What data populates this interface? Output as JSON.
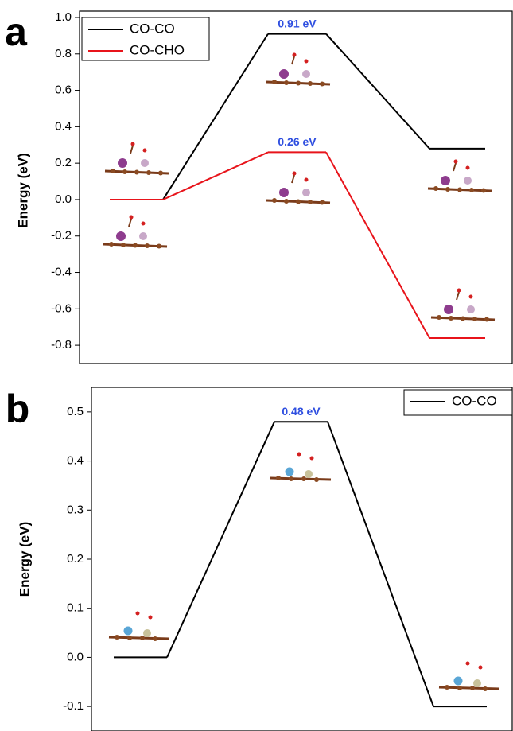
{
  "chart_data": [
    {
      "type": "line",
      "panel_label": "a",
      "y_label": "Energy (eV)",
      "categories": [
        null,
        null,
        null
      ],
      "series": [
        {
          "name": "CO-CO",
          "color": "#000000",
          "values": [
            0,
            0.91,
            0.28
          ],
          "value_labels": [
            null,
            "0.91 eV",
            null
          ]
        },
        {
          "name": "CO-CHO",
          "color": "#e8141b",
          "values": [
            0,
            0.26,
            -0.76
          ],
          "value_labels": [
            null,
            "0.26 eV",
            null
          ]
        }
      ],
      "ylim": [
        -0.9,
        1.0
      ],
      "yticks": [
        -0.8,
        -0.6,
        -0.4,
        -0.2,
        {
          "value": 0,
          "label": "0.0"
        },
        0.2,
        0.4,
        0.6,
        0.8,
        {
          "value": 1,
          "label": "1.0"
        }
      ],
      "legend": "top-left",
      "value_label_color": "#2f4fe0"
    },
    {
      "type": "line",
      "panel_label": "b",
      "y_label": "Energy (eV)",
      "categories": [
        null,
        null,
        null
      ],
      "series": [
        {
          "name": "CO-CO",
          "color": "#000000",
          "values": [
            0,
            0.48,
            -0.1
          ],
          "value_labels": [
            null,
            "0.48 eV",
            null
          ]
        }
      ],
      "ylim": [
        -0.15,
        0.55
      ],
      "yticks": [
        -0.1,
        {
          "value": 0,
          "label": "0.0"
        },
        0.1,
        0.2,
        0.3,
        0.4,
        0.5
      ],
      "legend": "top-right",
      "value_label_color": "#2f4fe0"
    }
  ]
}
